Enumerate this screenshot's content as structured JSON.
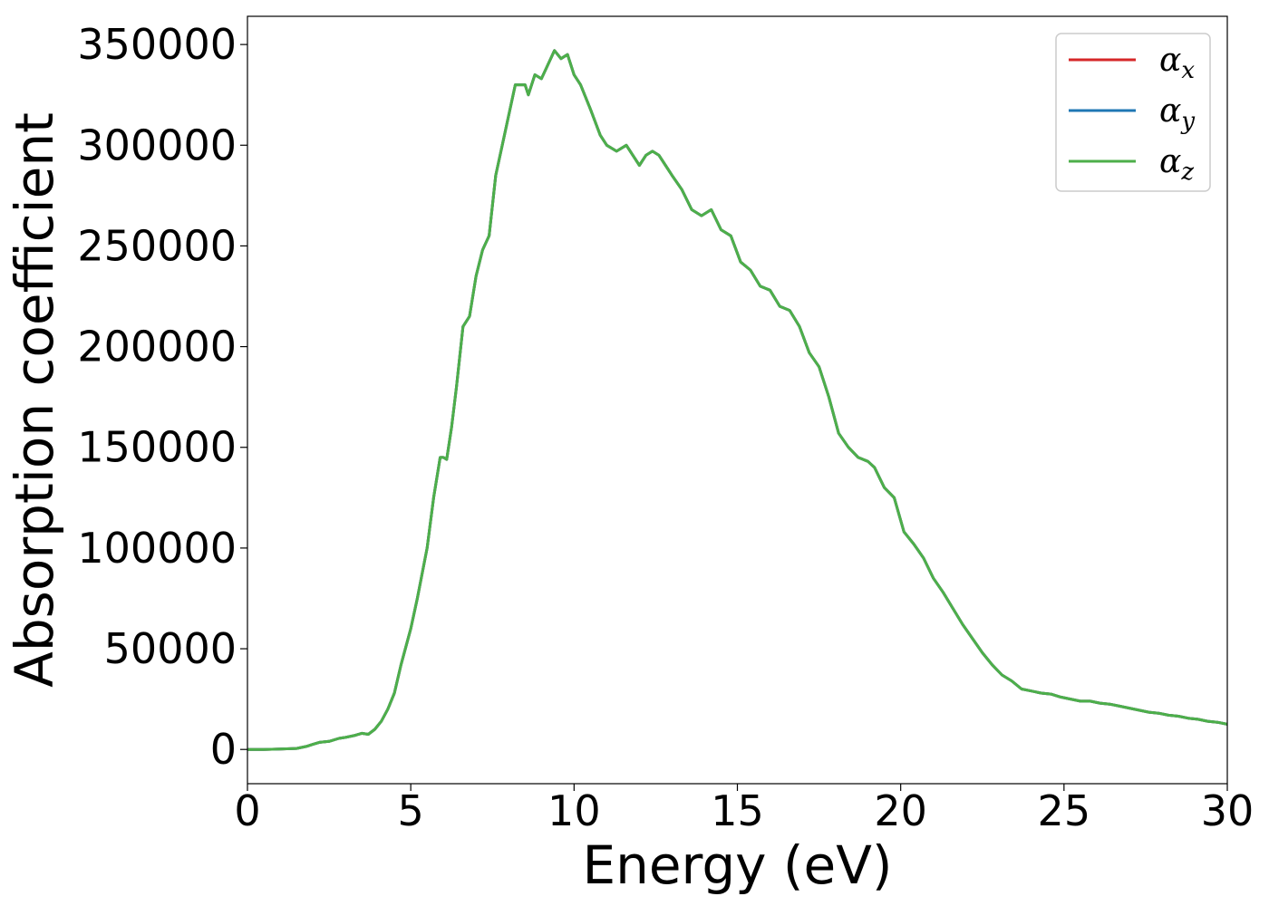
{
  "chart_data": {
    "type": "line",
    "title": "",
    "xlabel": "Energy (eV)",
    "ylabel": "Absorption coefficient",
    "xlim": [
      0,
      30
    ],
    "ylim": [
      -17000,
      364000
    ],
    "xticks": [
      0,
      5,
      10,
      15,
      20,
      25,
      30
    ],
    "xtick_labels": [
      "0",
      "5",
      "10",
      "15",
      "20",
      "25",
      "30"
    ],
    "yticks": [
      0,
      50000,
      100000,
      150000,
      200000,
      250000,
      300000,
      350000
    ],
    "ytick_labels": [
      "0",
      "50000",
      "100000",
      "150000",
      "200000",
      "250000",
      "300000",
      "350000"
    ],
    "grid": false,
    "legend_position": "top-right",
    "series": [
      {
        "name": "α",
        "sub": "x",
        "color": "#d62728"
      },
      {
        "name": "α",
        "sub": "y",
        "color": "#1f77b4"
      },
      {
        "name": "α",
        "sub": "z",
        "color": "#4daf4a"
      }
    ],
    "x": [
      0,
      0.5,
      1,
      1.5,
      1.8,
      2,
      2.2,
      2.5,
      2.8,
      3,
      3.3,
      3.5,
      3.7,
      3.9,
      4.1,
      4.3,
      4.5,
      4.7,
      5.0,
      5.2,
      5.5,
      5.7,
      5.9,
      6.0,
      6.1,
      6.25,
      6.4,
      6.6,
      6.8,
      7.0,
      7.2,
      7.4,
      7.6,
      7.8,
      8.0,
      8.2,
      8.4,
      8.5,
      8.6,
      8.8,
      9.0,
      9.2,
      9.4,
      9.6,
      9.8,
      10.0,
      10.2,
      10.5,
      10.8,
      11.0,
      11.3,
      11.6,
      11.8,
      12.0,
      12.2,
      12.4,
      12.6,
      12.8,
      13.0,
      13.3,
      13.6,
      13.9,
      14.2,
      14.5,
      14.8,
      15.1,
      15.4,
      15.7,
      16.0,
      16.3,
      16.6,
      16.9,
      17.2,
      17.5,
      17.8,
      18.1,
      18.4,
      18.7,
      19.0,
      19.2,
      19.5,
      19.8,
      20.1,
      20.4,
      20.7,
      21.0,
      21.3,
      21.6,
      21.9,
      22.2,
      22.5,
      22.8,
      23.1,
      23.4,
      23.7,
      24.0,
      24.3,
      24.6,
      24.9,
      25.2,
      25.5,
      25.8,
      26.1,
      26.4,
      26.7,
      27.0,
      27.3,
      27.6,
      27.9,
      28.2,
      28.5,
      28.8,
      29.1,
      29.4,
      29.7,
      30
    ],
    "y": [
      0,
      0,
      200,
      500,
      1500,
      2500,
      3500,
      4000,
      5500,
      6000,
      7000,
      8000,
      7500,
      10000,
      14000,
      20000,
      28000,
      42000,
      60000,
      75000,
      100000,
      125000,
      145000,
      145000,
      144000,
      160000,
      180000,
      210000,
      215000,
      235000,
      248000,
      255000,
      285000,
      300000,
      315000,
      330000,
      330000,
      330000,
      325000,
      335000,
      333000,
      340000,
      347000,
      343000,
      345000,
      335000,
      330000,
      318000,
      305000,
      300000,
      297000,
      300000,
      295000,
      290000,
      295000,
      297000,
      295000,
      290000,
      285000,
      278000,
      268000,
      265000,
      268000,
      258000,
      255000,
      242000,
      238000,
      230000,
      228000,
      220000,
      218000,
      210000,
      197000,
      190000,
      175000,
      157000,
      150000,
      145000,
      143000,
      140000,
      130000,
      125000,
      108000,
      102000,
      95000,
      85000,
      78000,
      70000,
      62000,
      55000,
      48000,
      42000,
      37000,
      34000,
      30000,
      29000,
      28000,
      27500,
      26000,
      25000,
      24000,
      24000,
      23000,
      22500,
      21500,
      20500,
      19500,
      18500,
      18000,
      17000,
      16500,
      15500,
      15000,
      14000,
      13500,
      12500
    ]
  }
}
